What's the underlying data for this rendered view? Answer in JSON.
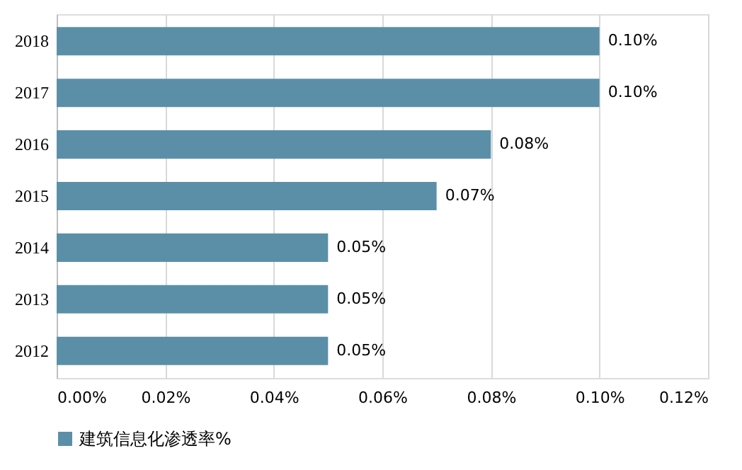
{
  "chart_data": {
    "type": "bar",
    "orientation": "horizontal",
    "categories": [
      "2018",
      "2017",
      "2016",
      "2015",
      "2014",
      "2013",
      "2012"
    ],
    "series": [
      {
        "name": "建筑信息化渗透率%",
        "color": "#5b8fa8",
        "values": [
          0.1,
          0.1,
          0.08,
          0.07,
          0.05,
          0.05,
          0.05
        ],
        "value_labels": [
          "0.10%",
          "0.10%",
          "0.08%",
          "0.07%",
          "0.05%",
          "0.05%",
          "0.05%"
        ]
      }
    ],
    "xlim": [
      0,
      0.12
    ],
    "xticks": [
      {
        "value": 0,
        "label": "0.00%"
      },
      {
        "value": 0.02,
        "label": "0.02%"
      },
      {
        "value": 0.04,
        "label": "0.04%"
      },
      {
        "value": 0.06,
        "label": "0.06%"
      },
      {
        "value": 0.08,
        "label": "0.08%"
      },
      {
        "value": 0.1,
        "label": "0.10%"
      },
      {
        "value": 0.12,
        "label": "0.12%"
      }
    ],
    "grid": "x",
    "legend": "bottom"
  }
}
